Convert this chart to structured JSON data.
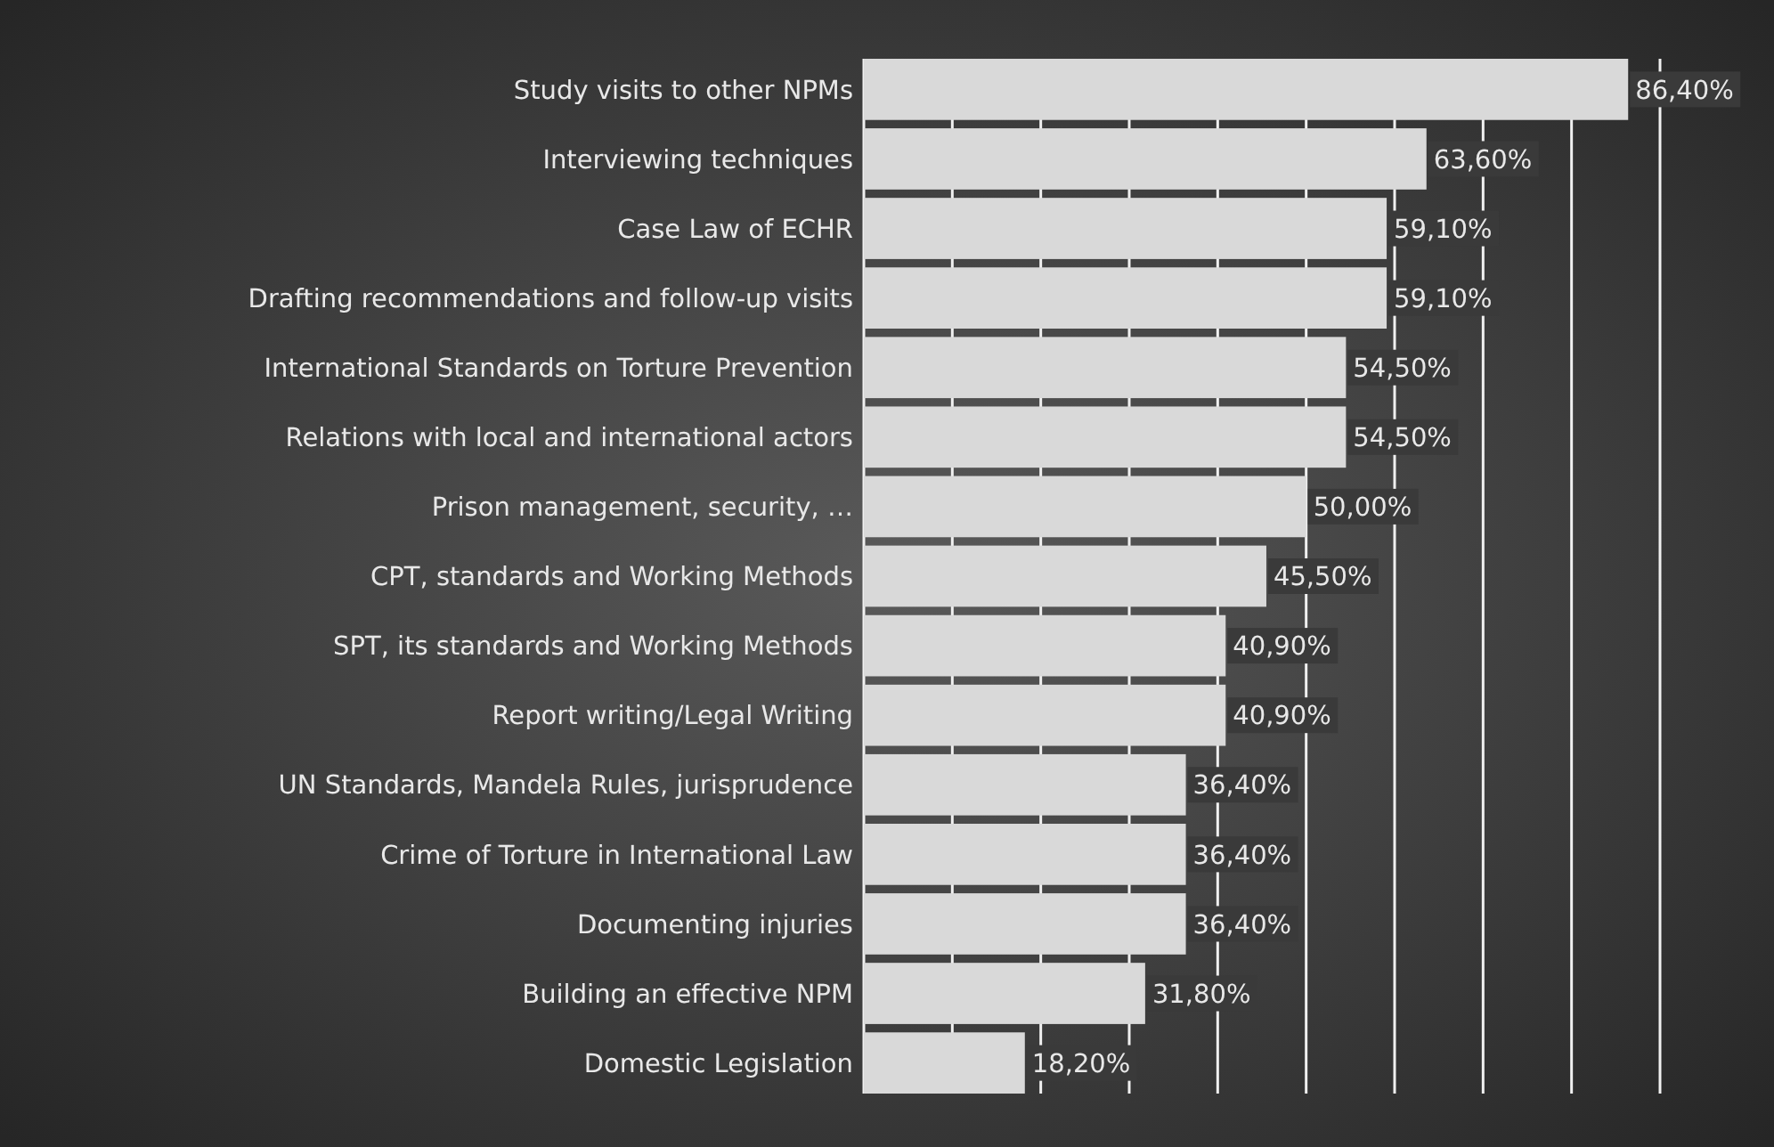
{
  "chart_data": {
    "type": "bar",
    "orientation": "horizontal",
    "categories": [
      "Study visits to other NPMs",
      "Interviewing techniques",
      "Case Law of ECHR",
      "Drafting recommendations and follow-up visits",
      "International Standards on Torture Prevention",
      "Relations with local and international actors",
      "Prison management, security, …",
      "CPT, standards and Working Methods",
      "SPT, its standards and Working Methods",
      "Report writing/Legal Writing",
      "UN Standards, Mandela Rules, jurisprudence",
      "Crime of Torture in International Law",
      "Documenting injuries",
      "Building an effective NPM",
      "Domestic Legislation"
    ],
    "values": [
      86.4,
      63.6,
      59.1,
      59.1,
      54.5,
      54.5,
      50.0,
      45.5,
      40.9,
      40.9,
      36.4,
      36.4,
      36.4,
      31.8,
      18.2
    ],
    "value_labels": [
      "86,40%",
      "63,60%",
      "59,10%",
      "59,10%",
      "54,50%",
      "54,50%",
      "50,00%",
      "45,50%",
      "40,90%",
      "40,90%",
      "36,40%",
      "36,40%",
      "36,40%",
      "31,80%",
      "18,20%"
    ],
    "color": "#d9d9d9",
    "xlim": [
      0,
      90
    ],
    "xticks": [
      {
        "value": 0,
        "label": null
      },
      {
        "value": 10,
        "label": null
      },
      {
        "value": 20,
        "label": null
      },
      {
        "value": 30,
        "label": null
      },
      {
        "value": 40,
        "label": null
      },
      {
        "value": 50,
        "label": null
      },
      {
        "value": 60,
        "label": null
      },
      {
        "value": 70,
        "label": null
      },
      {
        "value": 80,
        "label": null
      },
      {
        "value": 90,
        "label": null
      }
    ],
    "grid": "x",
    "tick_labels": "y"
  }
}
